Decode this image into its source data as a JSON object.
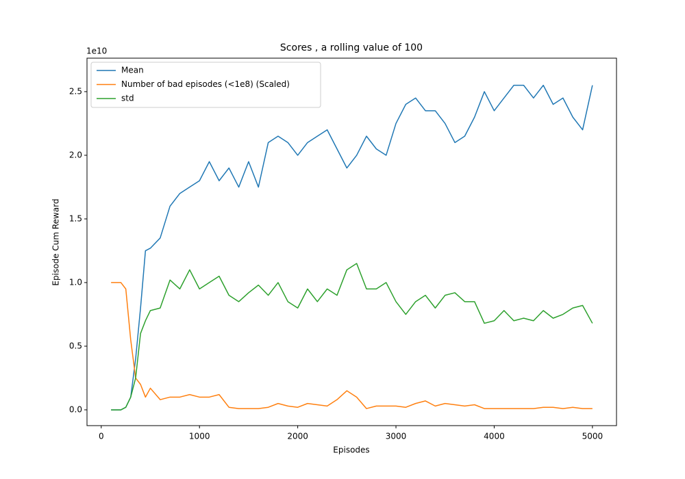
{
  "chart_data": {
    "type": "line",
    "title": "Scores , a rolling value of 100",
    "x_label": "Episodes",
    "y_label": "Episode Cum Reward",
    "y_offset_label": "1e10",
    "x": [
      100,
      200,
      250,
      300,
      350,
      400,
      450,
      500,
      600,
      700,
      800,
      900,
      1000,
      1100,
      1200,
      1300,
      1400,
      1500,
      1600,
      1700,
      1800,
      1900,
      2000,
      2100,
      2200,
      2300,
      2400,
      2500,
      2600,
      2700,
      2800,
      2900,
      3000,
      3100,
      3200,
      3300,
      3400,
      3500,
      3600,
      3700,
      3800,
      3900,
      4000,
      4100,
      4200,
      4300,
      4400,
      4500,
      4600,
      4700,
      4800,
      4900,
      5000
    ],
    "series": [
      {
        "name": "Mean",
        "color": "#1f77b4",
        "values": [
          0,
          0,
          0.02,
          0.1,
          0.4,
          0.8,
          1.25,
          1.27,
          1.35,
          1.6,
          1.7,
          1.75,
          1.8,
          1.95,
          1.8,
          1.9,
          1.75,
          1.95,
          1.75,
          2.1,
          2.15,
          2.1,
          2.0,
          2.1,
          2.15,
          2.2,
          2.05,
          1.9,
          2.0,
          2.15,
          2.05,
          2.0,
          2.25,
          2.4,
          2.45,
          2.35,
          2.35,
          2.25,
          2.1,
          2.15,
          2.3,
          2.5,
          2.35,
          2.45,
          2.55,
          2.55,
          2.45,
          2.55,
          2.4,
          2.45,
          2.3,
          2.2,
          2.55
        ]
      },
      {
        "name": "Number of bad episodes (<1e8) (Scaled)",
        "color": "#ff7f0e",
        "values": [
          1.0,
          1.0,
          0.95,
          0.55,
          0.25,
          0.2,
          0.1,
          0.17,
          0.08,
          0.1,
          0.1,
          0.12,
          0.1,
          0.1,
          0.12,
          0.02,
          0.01,
          0.01,
          0.01,
          0.02,
          0.05,
          0.03,
          0.02,
          0.05,
          0.04,
          0.03,
          0.08,
          0.15,
          0.1,
          0.01,
          0.03,
          0.03,
          0.03,
          0.02,
          0.05,
          0.07,
          0.03,
          0.05,
          0.04,
          0.03,
          0.04,
          0.01,
          0.01,
          0.01,
          0.01,
          0.01,
          0.01,
          0.02,
          0.02,
          0.01,
          0.02,
          0.01,
          0.01
        ]
      },
      {
        "name": "std",
        "color": "#2ca02c",
        "values": [
          0,
          0,
          0.02,
          0.1,
          0.25,
          0.6,
          0.7,
          0.78,
          0.8,
          1.02,
          0.95,
          1.1,
          0.95,
          1.0,
          1.05,
          0.9,
          0.85,
          0.92,
          0.98,
          0.9,
          1.0,
          0.85,
          0.8,
          0.95,
          0.85,
          0.95,
          0.9,
          1.1,
          1.15,
          0.95,
          0.95,
          1.0,
          0.85,
          0.75,
          0.85,
          0.9,
          0.8,
          0.9,
          0.92,
          0.85,
          0.85,
          0.68,
          0.7,
          0.78,
          0.7,
          0.72,
          0.7,
          0.78,
          0.72,
          0.75,
          0.8,
          0.82,
          0.68
        ]
      }
    ],
    "xlim": [
      -145,
      5245
    ],
    "ylim": [
      -0.124,
      2.763
    ],
    "xticks": [
      0,
      1000,
      2000,
      3000,
      4000,
      5000
    ],
    "yticks": [
      {
        "value": 0,
        "label": "0.0"
      },
      0.5,
      {
        "value": 1,
        "label": "1.0"
      },
      1.5,
      {
        "value": 2,
        "label": "2.0"
      },
      2.5
    ],
    "grid": false,
    "legend": "upper-left"
  }
}
